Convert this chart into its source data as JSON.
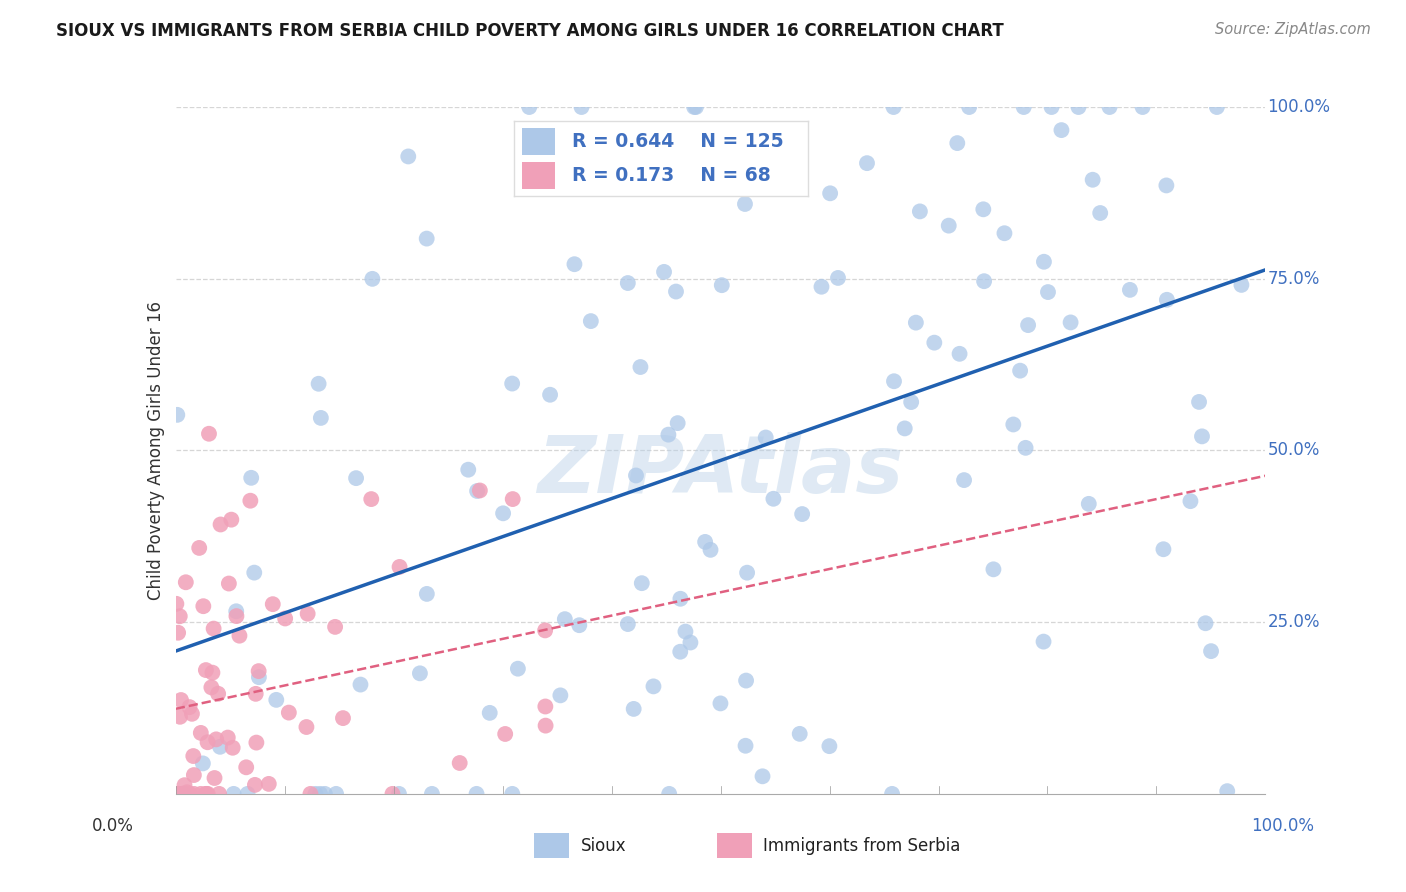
{
  "title": "SIOUX VS IMMIGRANTS FROM SERBIA CHILD POVERTY AMONG GIRLS UNDER 16 CORRELATION CHART",
  "source": "Source: ZipAtlas.com",
  "ylabel": "Child Poverty Among Girls Under 16",
  "y_ticks_labels": [
    "25.0%",
    "50.0%",
    "75.0%",
    "100.0%"
  ],
  "y_tick_vals": [
    0.25,
    0.5,
    0.75,
    1.0
  ],
  "legend_sioux_r": "0.644",
  "legend_sioux_n": "125",
  "legend_serbia_r": "0.173",
  "legend_serbia_n": "68",
  "watermark": "ZIPAtlas",
  "sioux_color": "#adc8e8",
  "sioux_edge_color": "#adc8e8",
  "sioux_line_color": "#2060b0",
  "serbia_color": "#f0a0b8",
  "serbia_edge_color": "#f0a0b8",
  "serbia_line_color": "#e06080",
  "background_color": "#ffffff",
  "grid_color": "#cccccc",
  "right_label_color": "#4070c0",
  "figsize": [
    14.06,
    8.92
  ],
  "dpi": 100
}
